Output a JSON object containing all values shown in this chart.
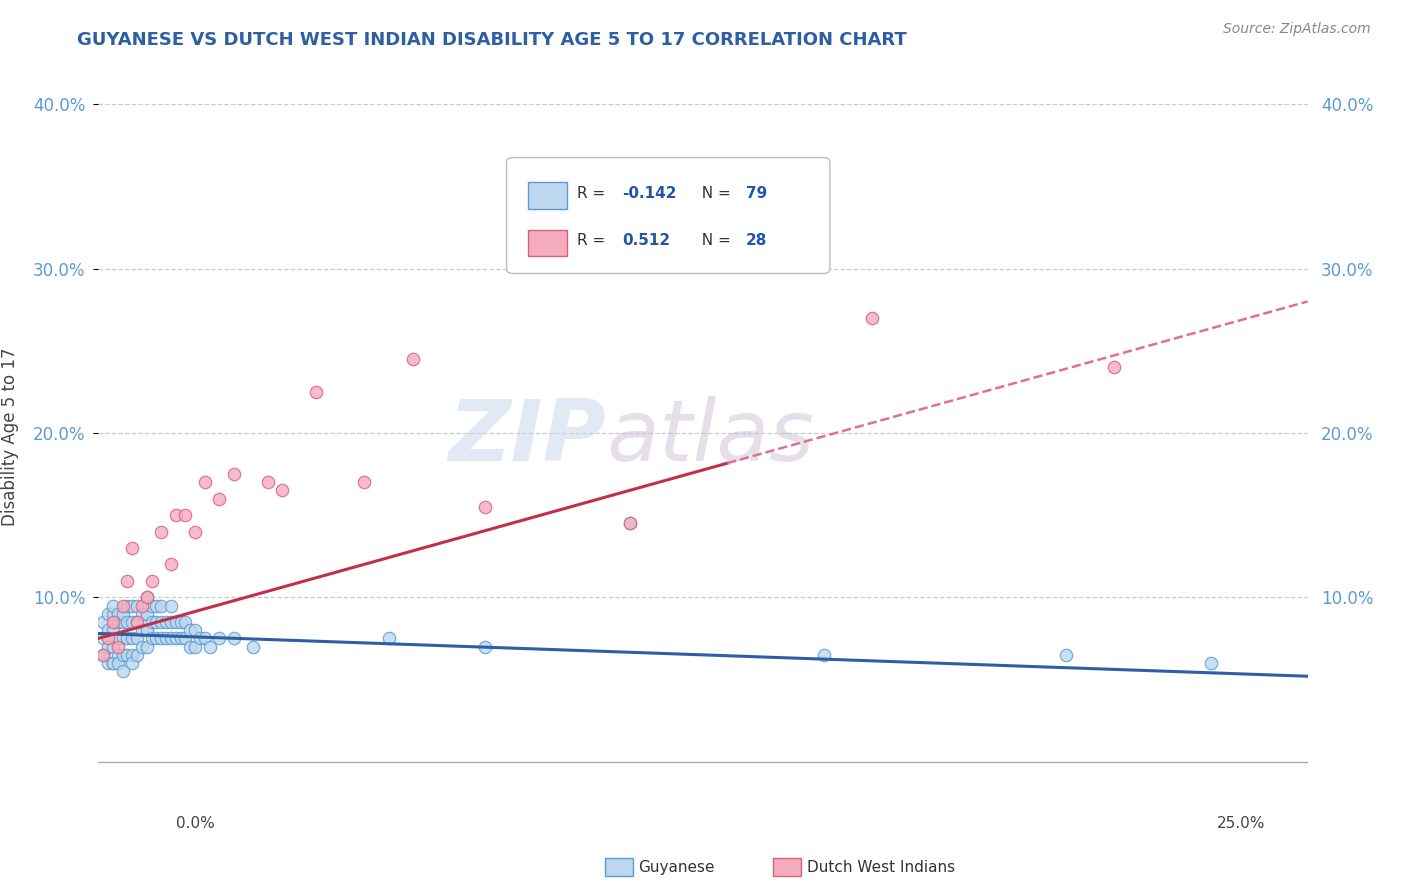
{
  "title": "GUYANESE VS DUTCH WEST INDIAN DISABILITY AGE 5 TO 17 CORRELATION CHART",
  "source_text": "Source: ZipAtlas.com",
  "ylabel": "Disability Age 5 to 17",
  "xmin": 0.0,
  "xmax": 0.25,
  "ymin": -0.025,
  "ymax": 0.42,
  "yticks": [
    0.1,
    0.2,
    0.3,
    0.4
  ],
  "ytick_labels": [
    "10.0%",
    "20.0%",
    "30.0%",
    "40.0%"
  ],
  "xtick_labels": [
    "0.0%",
    "25.0%"
  ],
  "blue_face": "#BDD7EE",
  "blue_edge": "#5B9BD5",
  "pink_face": "#F4ACBE",
  "pink_edge": "#D9607C",
  "blue_line_color": "#2E5FA3",
  "pink_line_color": "#C0304A",
  "pink_dash_color": "#E07090",
  "title_color": "#2E5FA3",
  "R_blue": -0.142,
  "N_blue": 79,
  "R_pink": 0.512,
  "N_pink": 28,
  "watermark_zip": "ZIP",
  "watermark_atlas": "atlas",
  "blue_scatter_x": [
    0.001,
    0.001,
    0.001,
    0.002,
    0.002,
    0.002,
    0.002,
    0.003,
    0.003,
    0.003,
    0.003,
    0.003,
    0.003,
    0.004,
    0.004,
    0.004,
    0.004,
    0.004,
    0.005,
    0.005,
    0.005,
    0.005,
    0.005,
    0.006,
    0.006,
    0.006,
    0.006,
    0.007,
    0.007,
    0.007,
    0.007,
    0.007,
    0.008,
    0.008,
    0.008,
    0.008,
    0.009,
    0.009,
    0.009,
    0.01,
    0.01,
    0.01,
    0.01,
    0.011,
    0.011,
    0.011,
    0.012,
    0.012,
    0.012,
    0.013,
    0.013,
    0.013,
    0.014,
    0.014,
    0.015,
    0.015,
    0.015,
    0.016,
    0.016,
    0.017,
    0.017,
    0.018,
    0.018,
    0.019,
    0.019,
    0.02,
    0.02,
    0.021,
    0.022,
    0.023,
    0.025,
    0.028,
    0.032,
    0.06,
    0.08,
    0.11,
    0.15,
    0.2,
    0.23
  ],
  "blue_scatter_y": [
    0.065,
    0.075,
    0.085,
    0.06,
    0.07,
    0.08,
    0.09,
    0.06,
    0.07,
    0.08,
    0.09,
    0.095,
    0.06,
    0.065,
    0.075,
    0.085,
    0.09,
    0.06,
    0.065,
    0.075,
    0.085,
    0.09,
    0.055,
    0.065,
    0.075,
    0.085,
    0.095,
    0.065,
    0.075,
    0.085,
    0.095,
    0.06,
    0.065,
    0.075,
    0.085,
    0.095,
    0.07,
    0.08,
    0.09,
    0.07,
    0.08,
    0.09,
    0.1,
    0.075,
    0.085,
    0.095,
    0.075,
    0.085,
    0.095,
    0.075,
    0.085,
    0.095,
    0.075,
    0.085,
    0.075,
    0.085,
    0.095,
    0.075,
    0.085,
    0.075,
    0.085,
    0.075,
    0.085,
    0.07,
    0.08,
    0.07,
    0.08,
    0.075,
    0.075,
    0.07,
    0.075,
    0.075,
    0.07,
    0.075,
    0.07,
    0.145,
    0.065,
    0.065,
    0.06
  ],
  "pink_scatter_x": [
    0.001,
    0.002,
    0.003,
    0.004,
    0.005,
    0.006,
    0.007,
    0.008,
    0.009,
    0.01,
    0.011,
    0.013,
    0.015,
    0.016,
    0.018,
    0.02,
    0.022,
    0.025,
    0.028,
    0.035,
    0.038,
    0.045,
    0.055,
    0.065,
    0.08,
    0.11,
    0.16,
    0.21
  ],
  "pink_scatter_y": [
    0.065,
    0.075,
    0.085,
    0.07,
    0.095,
    0.11,
    0.13,
    0.085,
    0.095,
    0.1,
    0.11,
    0.14,
    0.12,
    0.15,
    0.15,
    0.14,
    0.17,
    0.16,
    0.175,
    0.17,
    0.165,
    0.225,
    0.17,
    0.245,
    0.155,
    0.145,
    0.27,
    0.24
  ]
}
